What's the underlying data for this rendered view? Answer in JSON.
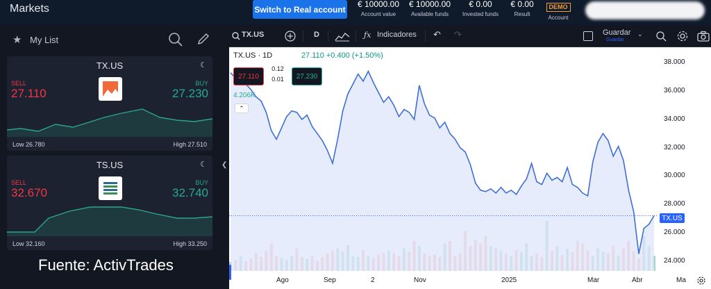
{
  "header": {
    "title": "Markets",
    "real_button": "Switch to Real account",
    "stats": [
      {
        "value": "€ 10000.00",
        "label": "Account value"
      },
      {
        "value": "€ 10000.00",
        "label": "Available funds"
      },
      {
        "value": "€ 0.00",
        "label": "Invested funds"
      },
      {
        "value": "€ 0.00",
        "label": "Result"
      }
    ],
    "demo_badge": "DEMO",
    "account_label": "Account"
  },
  "sidebar": {
    "list_title": "My List",
    "cards": [
      {
        "symbol": "TX.US",
        "sell_label": "SELL",
        "sell": "27.110",
        "buy_label": "BUY",
        "buy": "27.230",
        "low": "Low 26.780",
        "high": "High 27.510"
      },
      {
        "symbol": "TS.US",
        "sell_label": "SELL",
        "sell": "32.670",
        "buy_label": "BUY",
        "buy": "32.740",
        "low": "Low 32.160",
        "high": "High 33.250"
      }
    ]
  },
  "source_caption": "Fuente: ActivTrades",
  "toolbar": {
    "symbol": "TX.US",
    "interval": "D",
    "indicators": "Indicadores",
    "save": "Guardar",
    "save_sub": "Guardar"
  },
  "chart": {
    "header": "TX.US · 1D",
    "change": "27.110 +0.400 (+1.50%)",
    "sell_box": "27.110",
    "buy_box": "27.230",
    "spread": "0.12",
    "step": "0.01",
    "volume": "4.206K",
    "price_tag": "TX.US",
    "colors": {
      "line": "#3d6fd6",
      "fill": "#dfe6fb",
      "up": "#a5d6c4",
      "down": "#f7b7b3"
    }
  },
  "chart_data": {
    "type": "line",
    "title": "",
    "y_ticks": [
      "38.000",
      "36.000",
      "34.000",
      "32.000",
      "30.000",
      "28.000",
      "26.000",
      "24.000"
    ],
    "x_ticks": [
      "Ago",
      "Sep",
      "2",
      "Nov",
      "2025",
      "Mar",
      "Abr",
      "Ma"
    ],
    "ylim": [
      23.3,
      38.8
    ],
    "series": [
      {
        "values": [
          37.3,
          36.9,
          37.0,
          36.5,
          36.1,
          35.6,
          35.3,
          34.5,
          33.2,
          32.6,
          33.4,
          34.2,
          34.6,
          34.5,
          34.0,
          34.3,
          33.5,
          33.0,
          32.5,
          31.8,
          30.9,
          32.6,
          34.6,
          35.8,
          36.5,
          37.2,
          36.7,
          37.4,
          36.6,
          35.9,
          35.2,
          35.6,
          35.0,
          34.2,
          34.7,
          34.5,
          34.0,
          36.4,
          35.1,
          34.3,
          34.1,
          33.4,
          33.8,
          33.0,
          32.6,
          32.0,
          31.7,
          30.8,
          29.5,
          29.0,
          28.9,
          29.1,
          28.8,
          29.2,
          28.8,
          29.0,
          28.7,
          29.3,
          29.8,
          30.9,
          29.6,
          29.4,
          30.2,
          29.7,
          29.9,
          29.6,
          30.6,
          29.4,
          29.2,
          28.8,
          28.6,
          31.0,
          32.4,
          33.0,
          32.5,
          31.4,
          32.1,
          31.1,
          29.0,
          27.5,
          24.5,
          26.3,
          26.6,
          27.2
        ]
      }
    ],
    "volume_values": [
      0.18,
      0.22,
      0.3,
      0.2,
      0.25,
      0.35,
      0.28,
      0.4,
      0.55,
      0.3,
      0.26,
      0.22,
      0.3,
      0.45,
      0.28,
      0.24,
      0.3,
      0.2,
      0.28,
      0.35,
      0.4,
      0.45,
      0.38,
      0.52,
      0.3,
      0.28,
      0.42,
      0.3,
      0.25,
      0.33,
      0.36,
      0.4,
      0.35,
      0.3,
      0.45,
      0.38,
      0.6,
      0.5,
      0.35,
      0.3,
      0.32,
      0.28,
      0.55,
      0.6,
      0.3,
      0.35,
      0.8,
      0.5,
      0.62,
      0.55,
      0.7,
      0.5,
      0.45,
      0.4,
      0.35,
      0.3,
      0.42,
      0.38,
      0.55,
      0.3,
      0.35,
      0.28,
      1.0,
      0.4,
      0.5,
      0.32,
      0.45,
      0.38,
      0.6,
      0.55,
      0.42,
      0.3,
      0.45,
      0.38,
      0.35,
      0.5,
      0.3,
      0.45,
      0.6,
      0.4,
      0.25,
      0.7,
      0.5,
      0.3
    ]
  }
}
